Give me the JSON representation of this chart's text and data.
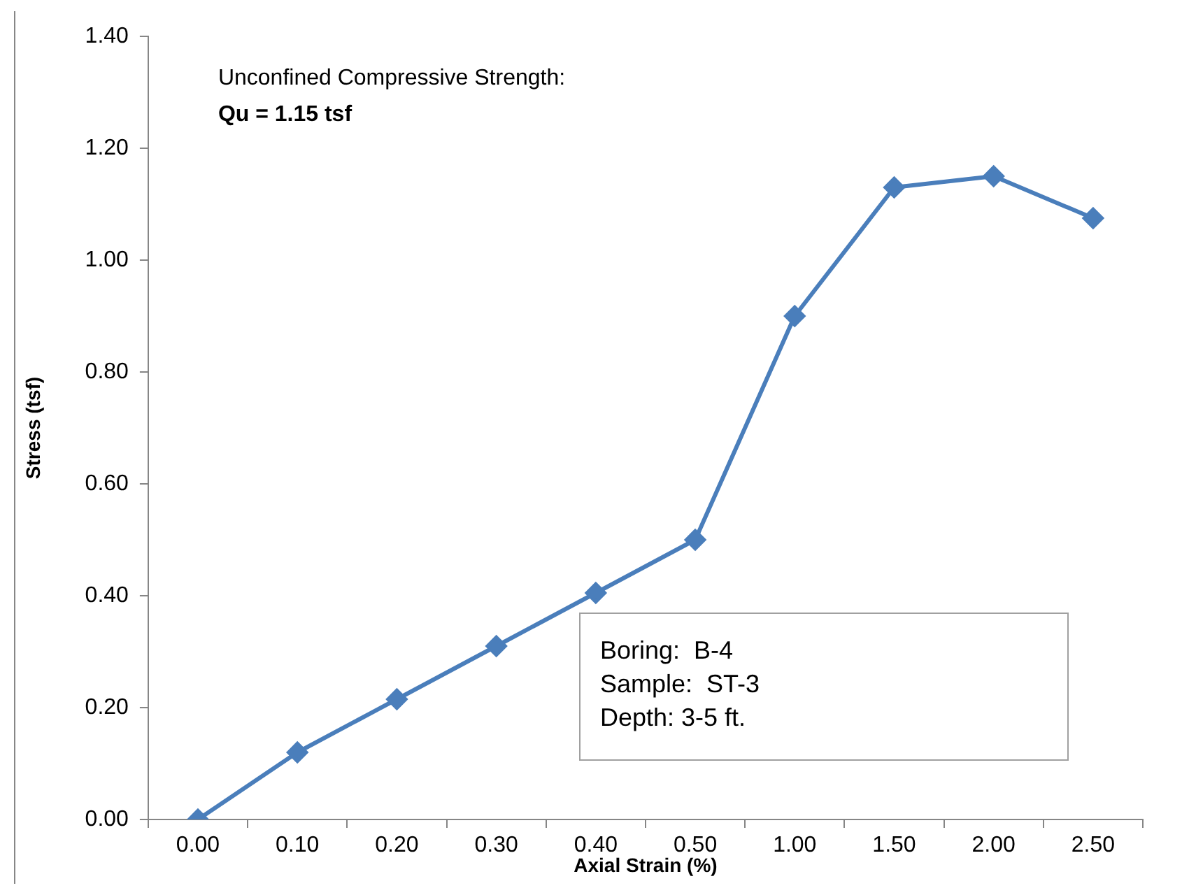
{
  "chart_data": {
    "type": "line",
    "xlabel": "Axial Strain (%)",
    "ylabel": "Stress (tsf)",
    "categories": [
      "0.00",
      "0.10",
      "0.20",
      "0.30",
      "0.40",
      "0.50",
      "1.00",
      "1.50",
      "2.00",
      "2.50"
    ],
    "series": [
      {
        "color": "#4a7ebb",
        "values": [
          0,
          0.12,
          0.215,
          0.31,
          0.405,
          0.5,
          0.9,
          1.13,
          1.15,
          1.075
        ]
      }
    ],
    "ylim": [
      0,
      1.4
    ],
    "yticks": [
      {
        "value": 0,
        "label": "0.00"
      },
      {
        "value": 0.2,
        "label": "0.20"
      },
      {
        "value": 0.4,
        "label": "0.40"
      },
      {
        "value": 0.6,
        "label": "0.60"
      },
      {
        "value": 0.8,
        "label": "0.80"
      },
      {
        "value": 1,
        "label": "1.00"
      },
      {
        "value": 1.2,
        "label": "1.20"
      },
      {
        "value": 1.4,
        "label": "1.40"
      }
    ],
    "annotations": [
      "Unconfined Compressive Strength:",
      "Qu = 1.15 tsf",
      "Boring:  B-4",
      "Sample:  ST-3",
      "Depth: 3-5 ft."
    ],
    "grid": false,
    "legend": false,
    "marker": "diamond",
    "line_style": "solid"
  }
}
